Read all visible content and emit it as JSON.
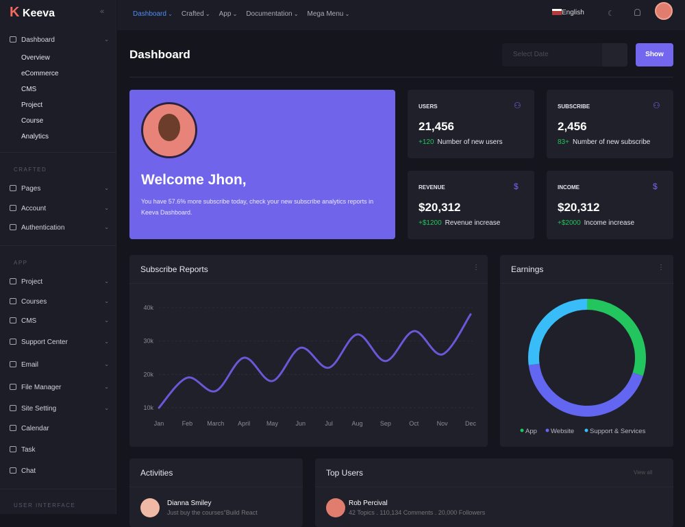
{
  "sidebar": {
    "brand": "Keeva",
    "dashboard": {
      "label": "Dashboard",
      "items": [
        "Overview",
        "eCommerce",
        "CMS",
        "Project",
        "Course",
        "Analytics"
      ]
    },
    "sections": [
      {
        "title": "CRAFTED",
        "items": [
          {
            "label": "Pages",
            "submenu": true
          },
          {
            "label": "Account",
            "submenu": true
          },
          {
            "label": "Authentication",
            "submenu": true
          }
        ]
      },
      {
        "title": "APP",
        "items": [
          {
            "label": "Project",
            "submenu": true
          },
          {
            "label": "Courses",
            "submenu": true
          },
          {
            "label": "CMS",
            "submenu": true
          },
          {
            "label": "Support Center",
            "submenu": true
          },
          {
            "label": "Email",
            "submenu": true
          },
          {
            "label": "File Manager",
            "submenu": true
          },
          {
            "label": "Site Setting",
            "submenu": true
          },
          {
            "label": "Calendar",
            "submenu": false
          },
          {
            "label": "Task",
            "submenu": false
          },
          {
            "label": "Chat",
            "submenu": false
          }
        ]
      },
      {
        "title": "USER INTERFACE",
        "items": []
      }
    ]
  },
  "topnav": {
    "items": [
      "Dashboard",
      "Crafted",
      "App",
      "Documentation",
      "Mega Menu"
    ],
    "language": "English"
  },
  "header": {
    "title": "Dashboard",
    "date_placeholder": "Select Date",
    "button": "Show"
  },
  "welcome": {
    "title": "Welcome Jhon,",
    "text": "You have 57.6% more subscribe today, check your new subscribe analytics reports in Keeva Dashboard."
  },
  "stats": [
    {
      "label": "USERS",
      "value": "21,456",
      "change": "+120",
      "note": "Number of new users"
    },
    {
      "label": "SUBSCRIBE",
      "value": "2,456",
      "change": "83+",
      "note": "Number of new subscribe"
    },
    {
      "label": "REVENUE",
      "value": "$20,312",
      "change": "+$1200",
      "note": "Revenue increase"
    },
    {
      "label": "INCOME",
      "value": "$20,312",
      "change": "+$2000",
      "note": "Income increase"
    }
  ],
  "chart_data": [
    {
      "type": "line",
      "title": "Subscribe Reports",
      "color": "#6a58d8",
      "grid": true,
      "categories": [
        "Jan",
        "Feb",
        "March",
        "April",
        "May",
        "Jun",
        "Jul",
        "Aug",
        "Sep",
        "Oct",
        "Nov",
        "Dec"
      ],
      "values": [
        10000,
        19000,
        15000,
        25000,
        18000,
        28000,
        22000,
        32000,
        24000,
        33000,
        26000,
        38000
      ],
      "ylim": [
        5000,
        42000
      ],
      "yticks": [
        {
          "value": 10000,
          "label": "10k"
        },
        {
          "value": 20000,
          "label": "20k"
        },
        {
          "value": 30000,
          "label": "30k"
        },
        {
          "value": 40000,
          "label": "40k"
        }
      ]
    },
    {
      "type": "pie",
      "title": "Earnings",
      "donut": true,
      "categories": [
        "App",
        "Website",
        "Support & Services"
      ],
      "values": [
        30,
        43,
        27
      ],
      "colors": [
        "#22c55e",
        "#6366f1",
        "#38bdf8"
      ]
    }
  ],
  "activities": {
    "title": "Activities",
    "items": [
      {
        "name": "Dianna Smiley",
        "text": "Just buy the courses\"Build React"
      }
    ]
  },
  "top_users": {
    "title": "Top Users",
    "link": "View all",
    "items": [
      {
        "name": "Rob Percival",
        "text": "42 Topics . 110,134 Comments . 20,000 Followers"
      }
    ]
  }
}
